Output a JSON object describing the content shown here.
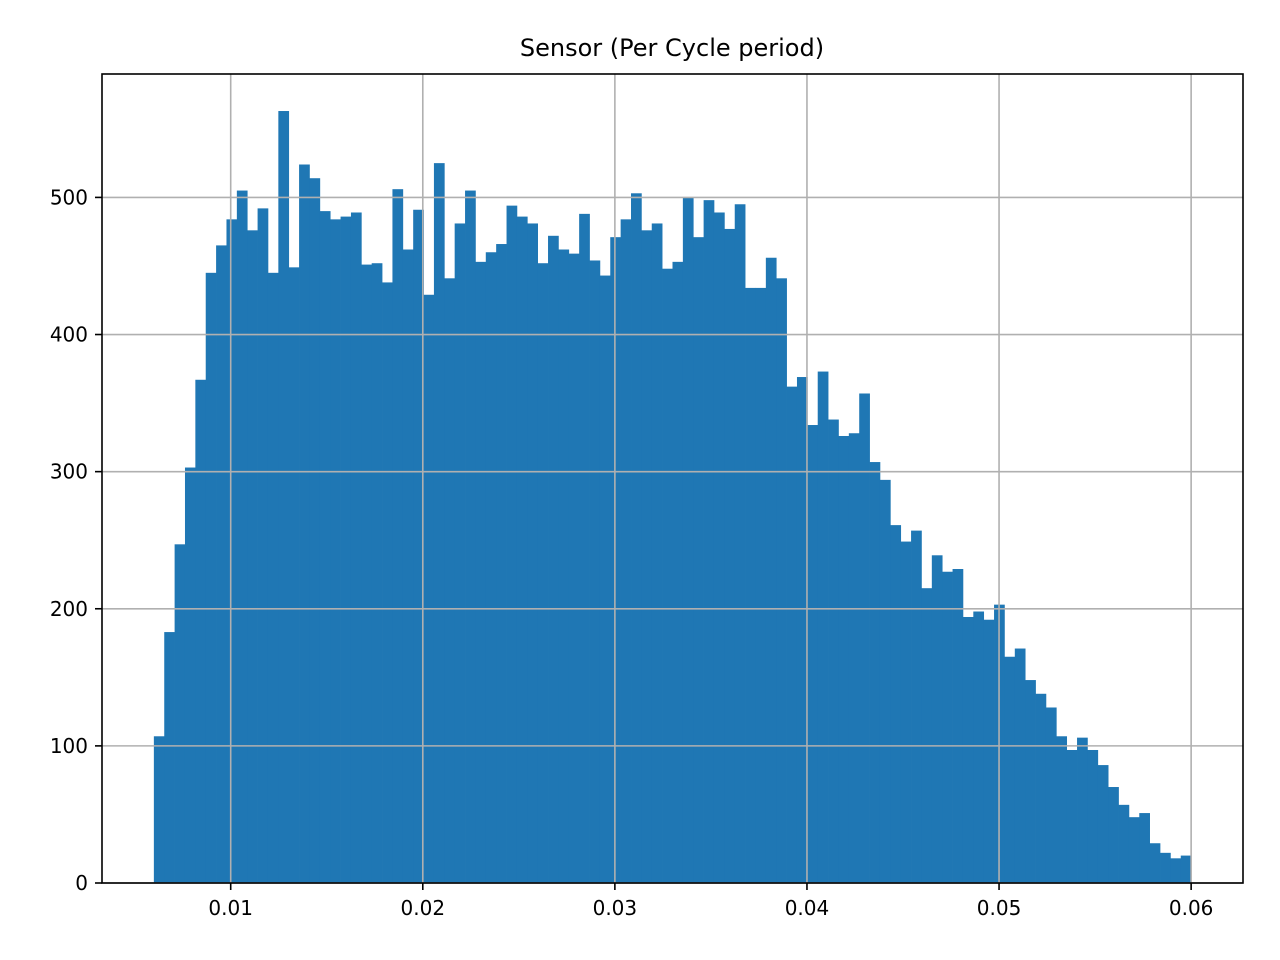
{
  "chart_data": {
    "type": "bar",
    "title": "Sensor (Per Cycle period)",
    "xlabel": "",
    "ylabel": "",
    "xlim": [
      0.0033,
      0.0627
    ],
    "ylim": [
      0,
      590
    ],
    "x_ticks": [
      0.01,
      0.02,
      0.03,
      0.04,
      0.05,
      0.06
    ],
    "x_tick_labels": [
      "0.01",
      "0.02",
      "0.03",
      "0.04",
      "0.05",
      "0.06"
    ],
    "y_ticks": [
      0,
      100,
      200,
      300,
      400,
      500
    ],
    "y_tick_labels": [
      "0",
      "100",
      "200",
      "300",
      "400",
      "500"
    ],
    "grid": true,
    "bar_color": "#1f77b4",
    "bin_start": 0.006,
    "bin_end": 0.06,
    "counts": [
      107,
      183,
      247,
      303,
      367,
      445,
      465,
      484,
      505,
      476,
      492,
      445,
      563,
      449,
      524,
      514,
      490,
      484,
      486,
      489,
      451,
      452,
      438,
      506,
      462,
      491,
      429,
      525,
      441,
      481,
      505,
      453,
      460,
      466,
      494,
      486,
      481,
      452,
      472,
      462,
      459,
      488,
      454,
      443,
      471,
      484,
      503,
      476,
      481,
      448,
      453,
      500,
      471,
      498,
      489,
      477,
      495,
      434,
      434,
      456,
      441,
      362,
      369,
      334,
      373,
      338,
      326,
      328,
      357,
      307,
      294,
      261,
      249,
      257,
      215,
      239,
      227,
      229,
      194,
      198,
      192,
      203,
      165,
      171,
      148,
      138,
      128,
      107,
      97,
      106,
      97,
      86,
      70,
      57,
      48,
      51,
      29,
      22,
      18,
      20
    ]
  }
}
